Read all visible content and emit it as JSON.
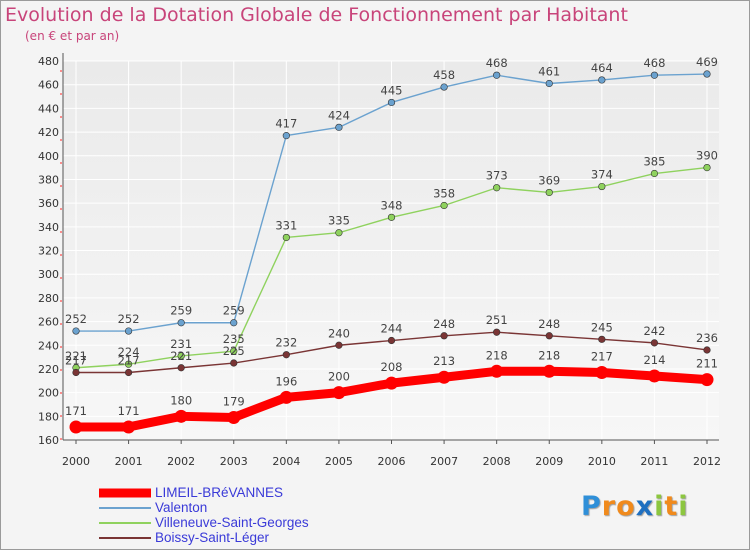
{
  "chart_data": {
    "type": "line",
    "title": "Evolution de la Dotation Globale de Fonctionnement par Habitant",
    "subtitle": "(en € et par an)",
    "xlabel": "",
    "ylabel": "",
    "categories": [
      "2000",
      "2001",
      "2002",
      "2003",
      "2004",
      "2005",
      "2006",
      "2007",
      "2008",
      "2009",
      "2010",
      "2011",
      "2012"
    ],
    "ylim": [
      160,
      480
    ],
    "yticks": [
      160,
      180,
      200,
      220,
      240,
      260,
      280,
      300,
      320,
      340,
      360,
      380,
      400,
      420,
      440,
      460,
      480
    ],
    "grid": true,
    "legend_position": "bottom-left",
    "series": [
      {
        "name": "LIMEIL-BRéVANNES",
        "color": "#ff0000",
        "values": [
          171,
          171,
          180,
          179,
          196,
          200,
          208,
          213,
          218,
          218,
          217,
          214,
          211
        ]
      },
      {
        "name": "Valenton",
        "color": "#6ba2cf",
        "values": [
          252,
          252,
          259,
          259,
          417,
          424,
          445,
          458,
          468,
          461,
          464,
          468,
          469
        ]
      },
      {
        "name": "Villeneuve-Saint-Georges",
        "color": "#8fd25e",
        "values": [
          221,
          224,
          231,
          235,
          331,
          335,
          348,
          358,
          373,
          369,
          374,
          385,
          390
        ]
      },
      {
        "name": "Boissy-Saint-Léger",
        "color": "#7a3535",
        "values": [
          217,
          217,
          221,
          225,
          232,
          240,
          244,
          248,
          251,
          248,
          245,
          242,
          236
        ]
      }
    ]
  },
  "logo": {
    "letters": [
      "P",
      "r",
      "o",
      "x",
      "i",
      "t",
      "i"
    ],
    "colors": [
      "#2f8fd8",
      "#f08a1c",
      "#f08a1c",
      "#1e6fc0",
      "#8cc63f",
      "#f08a1c",
      "#8cc63f"
    ]
  }
}
